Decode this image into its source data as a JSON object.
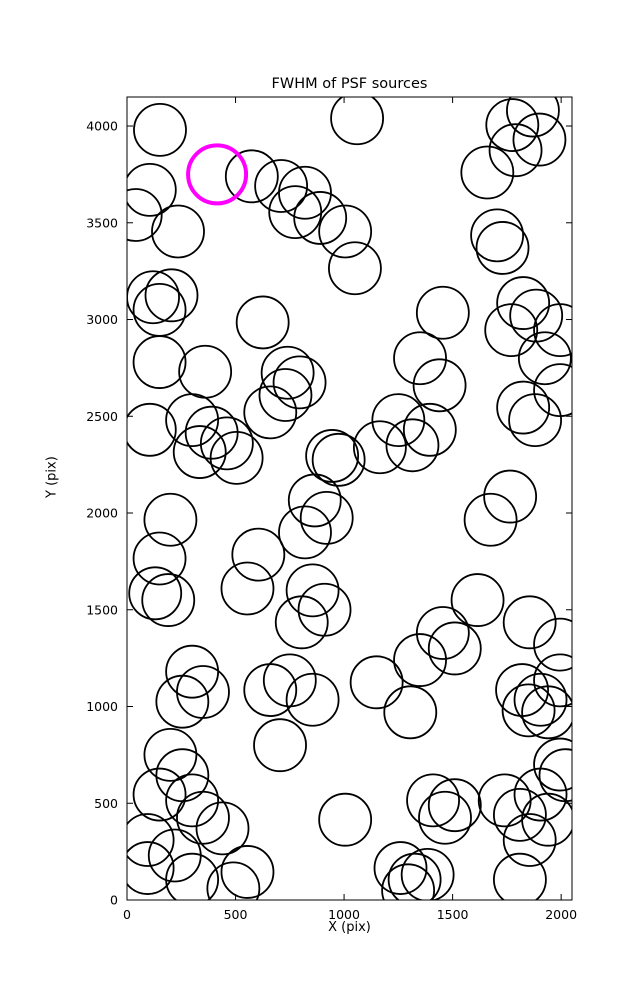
{
  "title": "FWHM of PSF sources",
  "xlabel": "X (pix)",
  "ylabel": "Y (pix)",
  "colors": {
    "background": "#ffffff",
    "axis": "#000000",
    "marker": "#000000",
    "highlight": "#ff00ff"
  },
  "chart_data": {
    "type": "scatter",
    "title": "FWHM of PSF sources",
    "xlabel": "X (pix)",
    "ylabel": "Y (pix)",
    "xlim": [
      0,
      2050
    ],
    "ylim": [
      0,
      4150
    ],
    "xticks": [
      0,
      500,
      1000,
      1500,
      2000
    ],
    "yticks": [
      0,
      500,
      1000,
      1500,
      2000,
      2500,
      3000,
      3500,
      4000
    ],
    "grid": false,
    "legend": "none",
    "marker": {
      "shape": "circle",
      "radius_px": 26,
      "fill": "none",
      "stroke": "#000000",
      "stroke_width": 1.8
    },
    "highlight_point": {
      "x": 415,
      "y": 3750,
      "radius_px": 29,
      "stroke": "#ff00ff",
      "stroke_width": 4
    },
    "points": [
      [
        152,
        3980
      ],
      [
        1060,
        4040
      ],
      [
        1775,
        4005
      ],
      [
        1870,
        4080
      ],
      [
        1900,
        3930
      ],
      [
        1790,
        3875
      ],
      [
        1660,
        3760
      ],
      [
        575,
        3740
      ],
      [
        710,
        3690
      ],
      [
        820,
        3655
      ],
      [
        105,
        3670
      ],
      [
        40,
        3540
      ],
      [
        235,
        3455
      ],
      [
        775,
        3555
      ],
      [
        890,
        3525
      ],
      [
        1005,
        3455
      ],
      [
        1050,
        3265
      ],
      [
        1705,
        3435
      ],
      [
        1730,
        3370
      ],
      [
        120,
        3115
      ],
      [
        205,
        3125
      ],
      [
        150,
        3050
      ],
      [
        625,
        2985
      ],
      [
        1455,
        3035
      ],
      [
        1825,
        3085
      ],
      [
        1885,
        3020
      ],
      [
        1770,
        2945
      ],
      [
        1995,
        2945
      ],
      [
        150,
        2780
      ],
      [
        360,
        2730
      ],
      [
        740,
        2725
      ],
      [
        795,
        2675
      ],
      [
        1350,
        2800
      ],
      [
        1440,
        2660
      ],
      [
        1925,
        2800
      ],
      [
        1995,
        2635
      ],
      [
        105,
        2430
      ],
      [
        300,
        2480
      ],
      [
        390,
        2415
      ],
      [
        460,
        2360
      ],
      [
        335,
        2315
      ],
      [
        505,
        2285
      ],
      [
        660,
        2520
      ],
      [
        730,
        2610
      ],
      [
        1250,
        2480
      ],
      [
        1315,
        2350
      ],
      [
        1395,
        2430
      ],
      [
        1825,
        2545
      ],
      [
        1880,
        2480
      ],
      [
        945,
        2295
      ],
      [
        975,
        2275
      ],
      [
        1165,
        2340
      ],
      [
        865,
        2065
      ],
      [
        920,
        1975
      ],
      [
        820,
        1900
      ],
      [
        1765,
        2085
      ],
      [
        1675,
        1965
      ],
      [
        200,
        1965
      ],
      [
        150,
        1765
      ],
      [
        605,
        1785
      ],
      [
        555,
        1610
      ],
      [
        130,
        1585
      ],
      [
        190,
        1550
      ],
      [
        855,
        1600
      ],
      [
        910,
        1500
      ],
      [
        805,
        1435
      ],
      [
        1615,
        1550
      ],
      [
        1855,
        1435
      ],
      [
        1995,
        1320
      ],
      [
        1455,
        1380
      ],
      [
        1510,
        1300
      ],
      [
        1350,
        1240
      ],
      [
        300,
        1180
      ],
      [
        350,
        1075
      ],
      [
        255,
        1025
      ],
      [
        660,
        1085
      ],
      [
        750,
        1135
      ],
      [
        855,
        1035
      ],
      [
        1150,
        1125
      ],
      [
        1305,
        970
      ],
      [
        1820,
        1085
      ],
      [
        1905,
        1035
      ],
      [
        1940,
        970
      ],
      [
        1850,
        980
      ],
      [
        1995,
        1135
      ],
      [
        200,
        750
      ],
      [
        705,
        800
      ],
      [
        255,
        645
      ],
      [
        1995,
        700
      ],
      [
        300,
        515
      ],
      [
        150,
        545
      ],
      [
        350,
        425
      ],
      [
        95,
        310
      ],
      [
        440,
        370
      ],
      [
        1005,
        415
      ],
      [
        1410,
        515
      ],
      [
        1465,
        425
      ],
      [
        1510,
        490
      ],
      [
        1740,
        515
      ],
      [
        1810,
        440
      ],
      [
        1905,
        545
      ],
      [
        1940,
        415
      ],
      [
        1855,
        310
      ],
      [
        2020,
        645
      ],
      [
        95,
        165
      ],
      [
        220,
        230
      ],
      [
        300,
        105
      ],
      [
        555,
        145
      ],
      [
        490,
        60
      ],
      [
        1260,
        165
      ],
      [
        1325,
        105
      ],
      [
        1295,
        50
      ],
      [
        1385,
        130
      ],
      [
        1810,
        105
      ]
    ]
  }
}
